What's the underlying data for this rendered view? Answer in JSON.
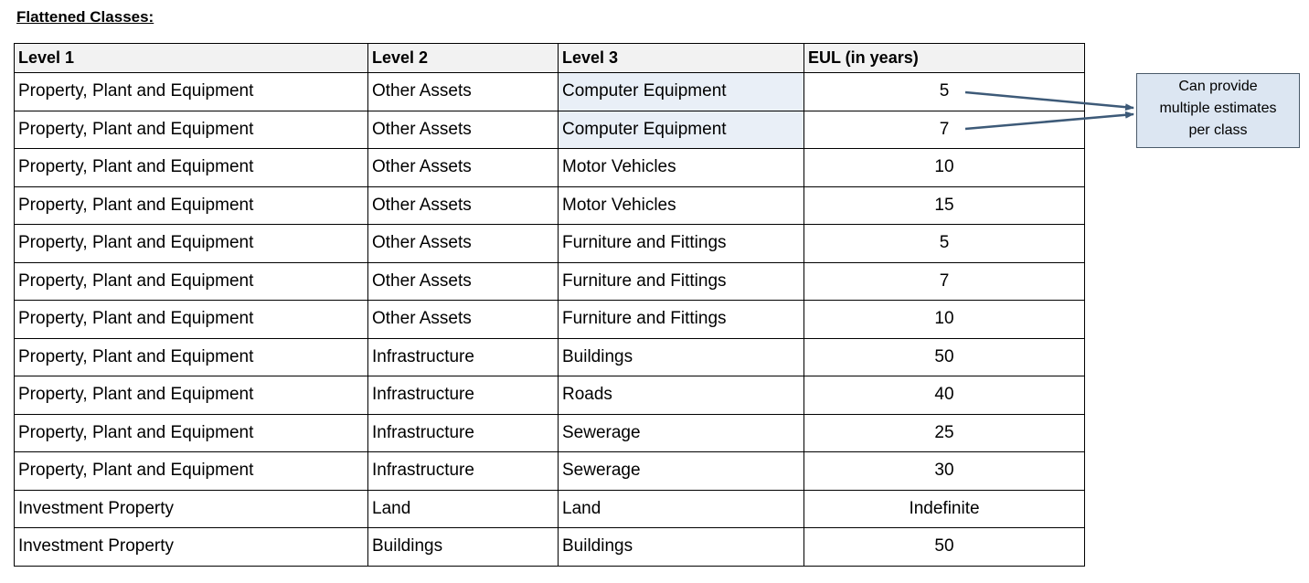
{
  "title": "Flattened Classes:",
  "table": {
    "headers": [
      "Level 1",
      "Level 2",
      "Level 3",
      "EUL (in years)"
    ],
    "rows": [
      [
        "Property, Plant and Equipment",
        "Other Assets",
        "Computer Equipment",
        "5"
      ],
      [
        "Property, Plant and Equipment",
        "Other Assets",
        "Computer Equipment",
        "7"
      ],
      [
        "Property, Plant and Equipment",
        "Other Assets",
        "Motor Vehicles",
        "10"
      ],
      [
        "Property, Plant and Equipment",
        "Other Assets",
        "Motor Vehicles",
        "15"
      ],
      [
        "Property, Plant and Equipment",
        "Other Assets",
        "Furniture and Fittings",
        "5"
      ],
      [
        "Property, Plant and Equipment",
        "Other Assets",
        "Furniture and Fittings",
        "7"
      ],
      [
        "Property, Plant and Equipment",
        "Other Assets",
        "Furniture and Fittings",
        "10"
      ],
      [
        "Property, Plant and Equipment",
        "Infrastructure",
        "Buildings",
        "50"
      ],
      [
        "Property, Plant and Equipment",
        "Infrastructure",
        "Roads",
        "40"
      ],
      [
        "Property, Plant and Equipment",
        "Infrastructure",
        "Sewerage",
        "25"
      ],
      [
        "Property, Plant and Equipment",
        "Infrastructure",
        "Sewerage",
        "30"
      ],
      [
        "Investment Property",
        "Land",
        "Land",
        "Indefinite"
      ],
      [
        "Investment Property",
        "Buildings",
        "Buildings",
        "50"
      ]
    ]
  },
  "callout": {
    "lines": [
      "Can provide",
      "multiple estimates",
      "per class"
    ]
  },
  "colors": {
    "header_bg": "#f2f2f2",
    "highlight_cell_bg": "#e9eff7",
    "callout_bg": "#dce6f2",
    "arrow": "#3d5a78"
  }
}
